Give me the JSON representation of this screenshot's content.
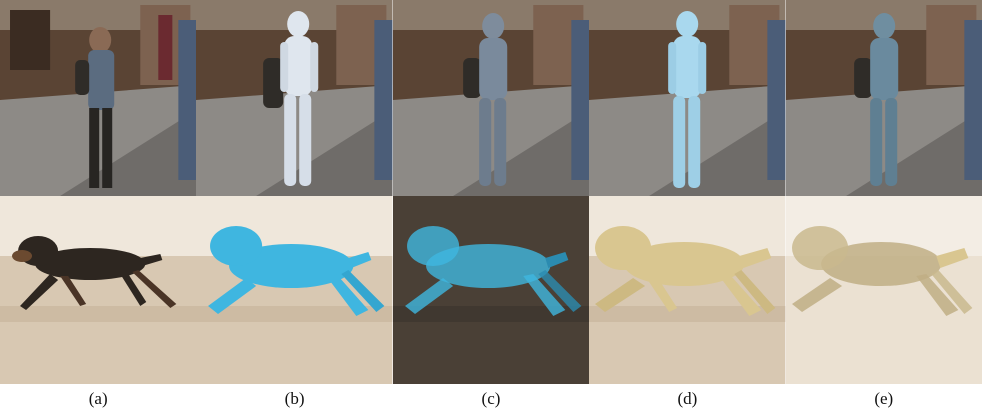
{
  "figure": {
    "columns": [
      {
        "label": "(a)"
      },
      {
        "label": "(b)"
      },
      {
        "label": "(c)"
      },
      {
        "label": "(d)"
      },
      {
        "label": "(e)"
      }
    ],
    "colors": {
      "street_wall": "#6b5040",
      "street_ground": "#8d8a86",
      "beach_sky": "#efe7db",
      "beach_sand": "#d8c8b2",
      "cyan_mesh": "#3fb6e0",
      "light_mesh": "#dfe6ee",
      "sky_blue_mesh": "#a9d8ee",
      "gold_mesh": "#d9c690",
      "dark_bg": "#4a4036"
    }
  }
}
